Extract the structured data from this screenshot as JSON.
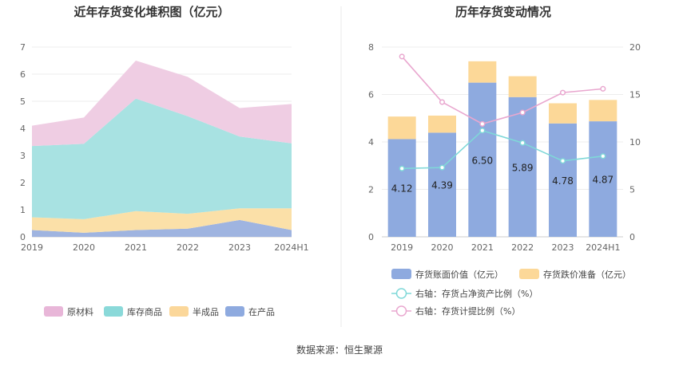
{
  "source_text": "数据来源：恒生聚源",
  "chart_data": [
    {
      "type": "area",
      "stacked": true,
      "title": "近年存货变化堆积图（亿元）",
      "categories": [
        "2019",
        "2020",
        "2021",
        "2022",
        "2023",
        "2024H1"
      ],
      "ylim": [
        0,
        7
      ],
      "yticks": [
        "0",
        "1",
        "2",
        "3",
        "4",
        "5",
        "6",
        "7"
      ],
      "grid": true,
      "legend_position": "bottom",
      "series": [
        {
          "name": "在产品",
          "color": "#9fb4e0",
          "values": [
            0.25,
            0.15,
            0.25,
            0.3,
            0.62,
            0.25
          ]
        },
        {
          "name": "半成品",
          "color": "#fbe0a8",
          "values": [
            0.47,
            0.5,
            0.7,
            0.55,
            0.43,
            0.8
          ]
        },
        {
          "name": "库存商品",
          "color": "#a8e2e2",
          "values": [
            2.63,
            2.78,
            4.15,
            3.6,
            2.65,
            2.4
          ]
        },
        {
          "name": "原材料",
          "color": "#efcde3",
          "values": [
            0.75,
            0.97,
            1.4,
            1.45,
            1.05,
            1.45
          ]
        }
      ],
      "legend_order": [
        {
          "name": "原材料",
          "color": "#e8b6d8"
        },
        {
          "name": "库存商品",
          "color": "#8ad9d9"
        },
        {
          "name": "半成品",
          "color": "#fbd79a"
        },
        {
          "name": "在产品",
          "color": "#8eaadf"
        }
      ]
    },
    {
      "type": "bar",
      "stacked": true,
      "title": "历年存货变动情况",
      "categories": [
        "2019",
        "2020",
        "2021",
        "2022",
        "2023",
        "2024H1"
      ],
      "ylim": [
        0,
        8
      ],
      "yticks": [
        "0",
        "2",
        "4",
        "6",
        "8"
      ],
      "y2lim": [
        0,
        20
      ],
      "y2ticks": [
        "0",
        "5",
        "10",
        "15",
        "20"
      ],
      "grid": true,
      "legend_position": "bottom",
      "series": [
        {
          "name": "存货账面价值（亿元）",
          "axis": "left",
          "color": "#8eaadf",
          "values": [
            4.12,
            4.39,
            6.5,
            5.89,
            4.78,
            4.87
          ],
          "labels": [
            "4.12",
            "4.39",
            "6.50",
            "5.89",
            "4.78",
            "4.87"
          ]
        },
        {
          "name": "存货跌价准备（亿元）",
          "axis": "left",
          "color": "#fcd898",
          "values": [
            0.95,
            0.72,
            0.9,
            0.88,
            0.85,
            0.9
          ]
        }
      ],
      "lines": [
        {
          "name": "右轴：存货占净资产比例（%）",
          "axis": "right",
          "color": "#7fd8d8",
          "values": [
            7.2,
            7.3,
            11.2,
            9.9,
            8.0,
            8.5
          ]
        },
        {
          "name": "右轴：存货计提比例（%）",
          "axis": "right",
          "color": "#e9a7cf",
          "values": [
            19.0,
            14.2,
            11.9,
            13.1,
            15.2,
            15.6
          ]
        }
      ]
    }
  ]
}
